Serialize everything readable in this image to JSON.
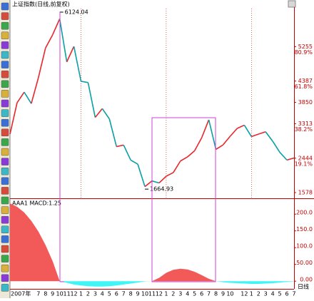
{
  "chart_data": [
    {
      "type": "line",
      "title": "上证指数(日线,前复权)",
      "values": [
        3050,
        3841,
        4109,
        3820,
        4471,
        5218,
        5552,
        5954,
        4871,
        5261,
        4383,
        4348,
        3472,
        3693,
        3433,
        2736,
        2775,
        2397,
        2293,
        1728,
        1871,
        1820,
        1990,
        2082,
        2373,
        2477,
        2632,
        2959,
        3412,
        2667,
        2779,
        2995,
        3195,
        3277,
        2989,
        3051,
        3109,
        2870,
        2592,
        2398,
        2450
      ],
      "ylim": [
        1434,
        6214
      ],
      "yticks": [
        5255,
        4387,
        3850,
        3313,
        2444,
        1578
      ],
      "fib_ticks": [
        {
          "value": 5255,
          "label": "80.9%"
        },
        {
          "value": 4387,
          "label": "61.8%"
        },
        {
          "value": 3313,
          "label": "38.2%"
        },
        {
          "value": 2444,
          "label": "19.1%"
        }
      ],
      "high": 6124.04,
      "low": 1664.93,
      "up_color": "#e8262b",
      "down_color": "#0a9fa5",
      "axis_color": "#c00000"
    },
    {
      "type": "area",
      "title": "AAA1  MACD:1.25",
      "categories": [
        "2007年",
        null,
        null,
        null,
        "7",
        "8",
        "9",
        "10",
        "11",
        "12",
        "1",
        "2",
        "3",
        "4",
        "5",
        "6",
        "7",
        "8",
        "9",
        "10",
        "11",
        "12",
        "1",
        "2",
        "3",
        "4",
        "5",
        "6",
        "7",
        "8",
        "9",
        "10",
        null,
        "12",
        "1",
        "2",
        "3",
        "4",
        "5",
        "6",
        "7"
      ],
      "values": [
        232,
        222,
        205,
        180,
        148,
        108,
        60,
        0,
        -5,
        -10,
        -13,
        -15,
        -16,
        -16,
        -15,
        -13,
        -10,
        -7,
        -4,
        -1,
        0,
        10,
        25,
        34,
        37,
        35,
        28,
        18,
        7,
        0,
        -3,
        -5,
        -6,
        -7,
        -8,
        -8,
        -7,
        -6,
        -4,
        -2,
        -1
      ],
      "ylim": [
        -23,
        243
      ],
      "yticks": [
        {
          "value": 200,
          "label": "200.0"
        },
        {
          "value": 150,
          "label": "150.0"
        },
        {
          "value": 100,
          "label": "100.0"
        },
        {
          "value": 50,
          "label": "50.00"
        },
        {
          "value": 0,
          "label": "0.00"
        }
      ],
      "pos_color": "#f25a5a",
      "neg_color": "#3ff5f5",
      "axis_color": "#c00000",
      "xlabel": "日线"
    }
  ]
}
